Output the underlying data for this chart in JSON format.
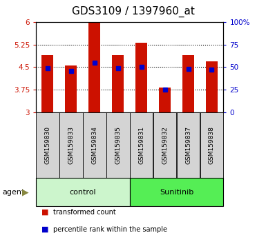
{
  "title": "GDS3109 / 1397960_at",
  "samples": [
    "GSM159830",
    "GSM159833",
    "GSM159834",
    "GSM159835",
    "GSM159831",
    "GSM159832",
    "GSM159837",
    "GSM159838"
  ],
  "red_values": [
    4.9,
    4.55,
    6.0,
    4.9,
    5.3,
    3.82,
    4.9,
    4.7
  ],
  "blue_values": [
    4.47,
    4.38,
    4.65,
    4.47,
    4.5,
    3.75,
    4.44,
    4.42
  ],
  "y_min": 3.0,
  "y_max": 6.0,
  "y_ticks": [
    3.0,
    3.75,
    4.5,
    5.25,
    6.0
  ],
  "y_tick_labels": [
    "3",
    "3.75",
    "4.5",
    "5.25",
    "6"
  ],
  "y2_ticks": [
    0,
    25,
    50,
    75,
    100
  ],
  "y2_tick_labels": [
    "0",
    "25",
    "50",
    "75",
    "100%"
  ],
  "groups": [
    {
      "label": "control",
      "indices": [
        0,
        1,
        2,
        3
      ],
      "color": "#ccf5cc"
    },
    {
      "label": "Sunitinib",
      "indices": [
        4,
        5,
        6,
        7
      ],
      "color": "#55ee55"
    }
  ],
  "bar_color": "#cc1100",
  "marker_color": "#0000cc",
  "bar_width": 0.5,
  "plot_bg": "#ffffff",
  "agent_label": "agent",
  "arrow_color": "#888840",
  "legend_items": [
    {
      "color": "#cc1100",
      "label": "transformed count"
    },
    {
      "color": "#0000cc",
      "label": "percentile rank within the sample"
    }
  ],
  "title_fontsize": 11,
  "tick_fontsize": 7.5,
  "sample_fontsize": 6.5,
  "group_fontsize": 8,
  "legend_fontsize": 7
}
